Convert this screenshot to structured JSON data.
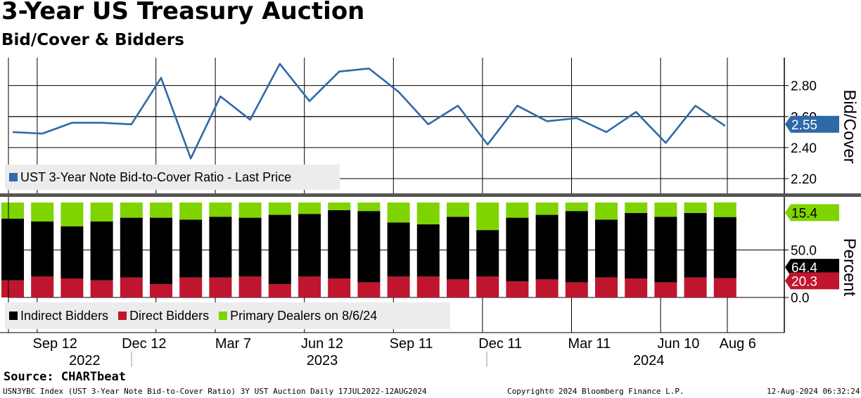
{
  "title": "3-Year US Treasury Auction",
  "subtitle": "Bid/Cover & Bidders",
  "source": "Source: CHARTbeat",
  "footer": {
    "left": "USN3YBC Index (UST 3-Year Note Bid-to-Cover Ratio) 3Y UST Auction  Daily 17JUL2022-12AUG2024",
    "center": "Copyright© 2024 Bloomberg Finance L.P.",
    "right": "12-Aug-2024 06:32:24"
  },
  "colors": {
    "line": "#2e69a8",
    "indirect": "#000000",
    "direct": "#c0152f",
    "primary": "#7fd400",
    "grid": "#000000"
  },
  "chart_data": [
    {
      "type": "line",
      "title": "Bid/Cover",
      "ylabel": "Bid/Cover",
      "ylim": [
        2.1,
        2.98
      ],
      "yticks": [
        "2.80",
        "2.60",
        "2.40",
        "2.20"
      ],
      "legend": "UST 3-Year Note Bid-to-Cover Ratio - Last Price",
      "last_value_label": "2.55",
      "series": [
        {
          "name": "UST 3-Year Note Bid-to-Cover Ratio - Last Price",
          "values": [
            2.5,
            2.49,
            2.56,
            2.56,
            2.55,
            2.85,
            2.33,
            2.73,
            2.58,
            2.94,
            2.7,
            2.89,
            2.91,
            2.76,
            2.55,
            2.67,
            2.42,
            2.67,
            2.57,
            2.59,
            2.5,
            2.63,
            2.43,
            2.67,
            2.54
          ]
        }
      ]
    },
    {
      "type": "bar",
      "stacked": true,
      "ylabel": "Percent",
      "ylim": [
        -37,
        100
      ],
      "yticks": [
        "50.0",
        "0.0"
      ],
      "legend": [
        "Indirect Bidders",
        "Direct Bidders",
        "Primary Dealers on 8/6/24"
      ],
      "last_value_labels": {
        "primary": "15.4",
        "indirect": "64.4",
        "direct": "20.3"
      },
      "series": [
        {
          "name": "Direct Bidders",
          "values": [
            18,
            22,
            20,
            18,
            21,
            14,
            21,
            21,
            22,
            14,
            22,
            20,
            16,
            22,
            22,
            19,
            22,
            17,
            19,
            16,
            21,
            20,
            16,
            21,
            20.3
          ]
        },
        {
          "name": "Indirect Bidders",
          "values": [
            65,
            58,
            55,
            62,
            63,
            70,
            61,
            64,
            62,
            73,
            66,
            72,
            75,
            57,
            55,
            66,
            49,
            67,
            68,
            75,
            61,
            69,
            69,
            68,
            64.4
          ]
        },
        {
          "name": "Primary Dealers on 8/6/24",
          "values": [
            17,
            20,
            25,
            20,
            16,
            16,
            18,
            15,
            16,
            13,
            12,
            8,
            9,
            21,
            23,
            15,
            29,
            16,
            13,
            9,
            18,
            11,
            15,
            11,
            15.4
          ]
        }
      ]
    }
  ],
  "x_axis": {
    "labels": [
      {
        "text": "Sep 12",
        "index": 1
      },
      {
        "text": "Dec 12",
        "index": 4
      },
      {
        "text": "Mar 7",
        "index": 7
      },
      {
        "text": "Jun 12",
        "index": 10
      },
      {
        "text": "Sep 11",
        "index": 13
      },
      {
        "text": "Dec 11",
        "index": 16
      },
      {
        "text": "Mar 11",
        "index": 19
      },
      {
        "text": "Jun 10",
        "index": 22
      },
      {
        "text": "Aug 6",
        "index": 24
      }
    ],
    "years": [
      {
        "text": "2022",
        "index": 2
      },
      {
        "text": "2023",
        "index": 10
      },
      {
        "text": "2024",
        "index": 21
      }
    ]
  }
}
